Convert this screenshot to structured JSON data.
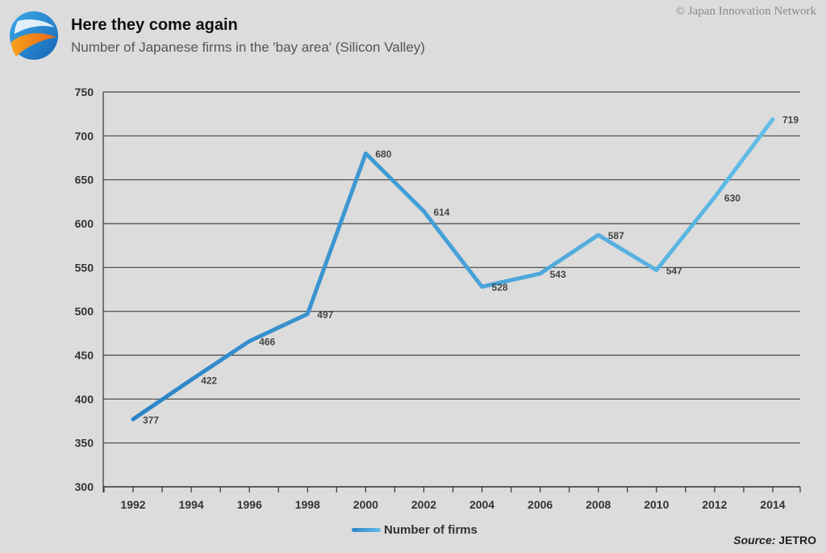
{
  "header": {
    "title": "Here they come again",
    "subtitle": "Number of Japanese firms in the 'bay area' (Silicon Valley)",
    "credit": "© Japan Innovation Network",
    "logo_icon": "globe-swirl-icon"
  },
  "footer": {
    "source_label": "Source:",
    "source_value": " JETRO"
  },
  "colors": {
    "background": "#dcdcdc",
    "line_start": "#2a84c6",
    "line_end": "#63bde8",
    "grid": "#444444"
  },
  "chart_data": {
    "type": "line",
    "title": "Here they come again",
    "subtitle": "Number of Japanese firms in the 'bay area' (Silicon Valley)",
    "x": [
      1992,
      1994,
      1996,
      1998,
      2000,
      2002,
      2004,
      2006,
      2008,
      2010,
      2012,
      2014
    ],
    "x_tick_labels": [
      "1992",
      "1994",
      "1996",
      "1998",
      "2000",
      "2002",
      "2004",
      "2006",
      "2008",
      "2010",
      "2012",
      "2014"
    ],
    "ylim": [
      300,
      750
    ],
    "y_ticks": [
      300,
      350,
      400,
      450,
      500,
      550,
      600,
      650,
      700,
      750
    ],
    "grid": "horizontal",
    "legend": "bottom-center",
    "series": [
      {
        "name": "Number of firms",
        "values": [
          377,
          422,
          466,
          497,
          680,
          614,
          528,
          543,
          587,
          547,
          630,
          719
        ]
      }
    ]
  }
}
